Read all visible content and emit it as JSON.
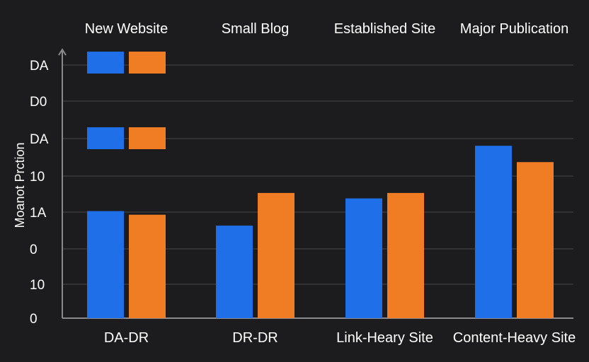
{
  "chart_data": {
    "type": "bar",
    "top_categories": [
      "New Website",
      "Small Blog",
      "Established Site",
      "Major Publication"
    ],
    "categories": [
      "DA-DR",
      "DR-DR",
      "Link-Heary Site",
      "Content-Heavy Site"
    ],
    "ylabel": "Moanot Prction",
    "y_ticks": [
      "DA",
      "D0",
      "DA",
      "10",
      "1A",
      "0",
      "10",
      "0"
    ],
    "series": [
      {
        "color": "#1f6fe8",
        "values": [
          5.9,
          5.1,
          6.6,
          9.5
        ]
      },
      {
        "color": "#f07c24",
        "values": [
          5.7,
          6.9,
          6.9,
          8.6
        ]
      }
    ],
    "legend_swatch_rows": 2,
    "ylim": [
      0,
      12
    ],
    "grid": true,
    "colors": {
      "background": "#1c1c1e",
      "grid": "#3a3a3d",
      "axis": "#8a8a8e"
    }
  }
}
